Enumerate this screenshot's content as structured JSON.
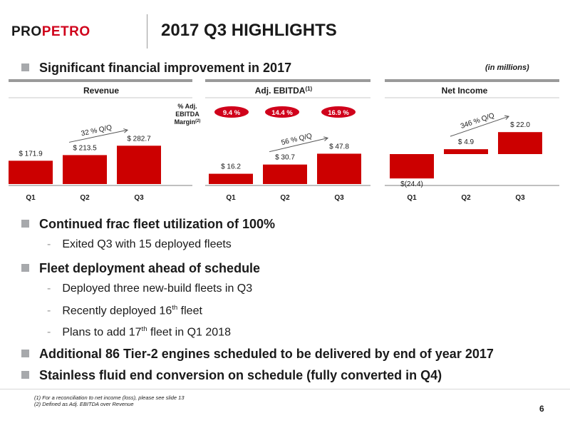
{
  "header": {
    "logo_text_a": "PRO",
    "logo_text_b": "PETRO",
    "title": "2017 Q3 HIGHLIGHTS"
  },
  "units_note": "(in millions)",
  "bullets": {
    "b1": "Significant financial improvement in 2017",
    "b2": "Continued frac fleet utilization of 100%",
    "b2_sub1": "Exited Q3 with 15 deployed fleets",
    "b3": "Fleet deployment ahead of schedule",
    "b3_sub1": "Deployed three new-build fleets in Q3",
    "b3_sub2_pre": "Recently deployed 16",
    "b3_sub2_sup": "th",
    "b3_sub2_post": " fleet",
    "b3_sub3_pre": "Plans to add 17",
    "b3_sub3_sup": "th",
    "b3_sub3_post": " fleet in Q1 2018",
    "b4": "Additional 86 Tier-2 engines scheduled to be delivered by end of year 2017",
    "b5": "Stainless fluid end conversion on schedule (fully converted in Q4)"
  },
  "footnotes": {
    "f1": "(1) For a reconciliation to net income (loss), please see slide 13",
    "f2": "(2) Defined as Adj. EBITDA over Revenue"
  },
  "page_number": "6",
  "colors": {
    "bar": "#cc0000",
    "accent": "#d0021b",
    "bullet": "#a7a9ac"
  },
  "chart_data": [
    {
      "type": "bar",
      "title": "Revenue",
      "categories": [
        "Q1",
        "Q2",
        "Q3"
      ],
      "values": [
        171.9,
        213.5,
        282.7
      ],
      "labels": [
        "$ 171.9",
        "$ 213.5",
        "$ 282.7"
      ],
      "growth_label": "32 % Q/Q"
    },
    {
      "type": "bar",
      "title": "Adj. EBITDA",
      "title_sup": "(1)",
      "categories": [
        "Q1",
        "Q2",
        "Q3"
      ],
      "values": [
        16.2,
        30.7,
        47.8
      ],
      "labels": [
        "$ 16.2",
        "$ 30.7",
        "$ 47.8"
      ],
      "growth_label": "56 % Q/Q",
      "margin_caption": [
        "% Adj.",
        "EBITDA",
        "Margin"
      ],
      "margin_caption_sup": "(2)",
      "margins": [
        "9.4 %",
        "14.4 %",
        "16.9 %"
      ]
    },
    {
      "type": "bar",
      "title": "Net Income",
      "categories": [
        "Q1",
        "Q2",
        "Q3"
      ],
      "values": [
        -24.4,
        4.9,
        22.0
      ],
      "labels": [
        "$(24.4)",
        "$ 4.9",
        "$ 22.0"
      ],
      "growth_label": "346 % Q/Q"
    }
  ]
}
